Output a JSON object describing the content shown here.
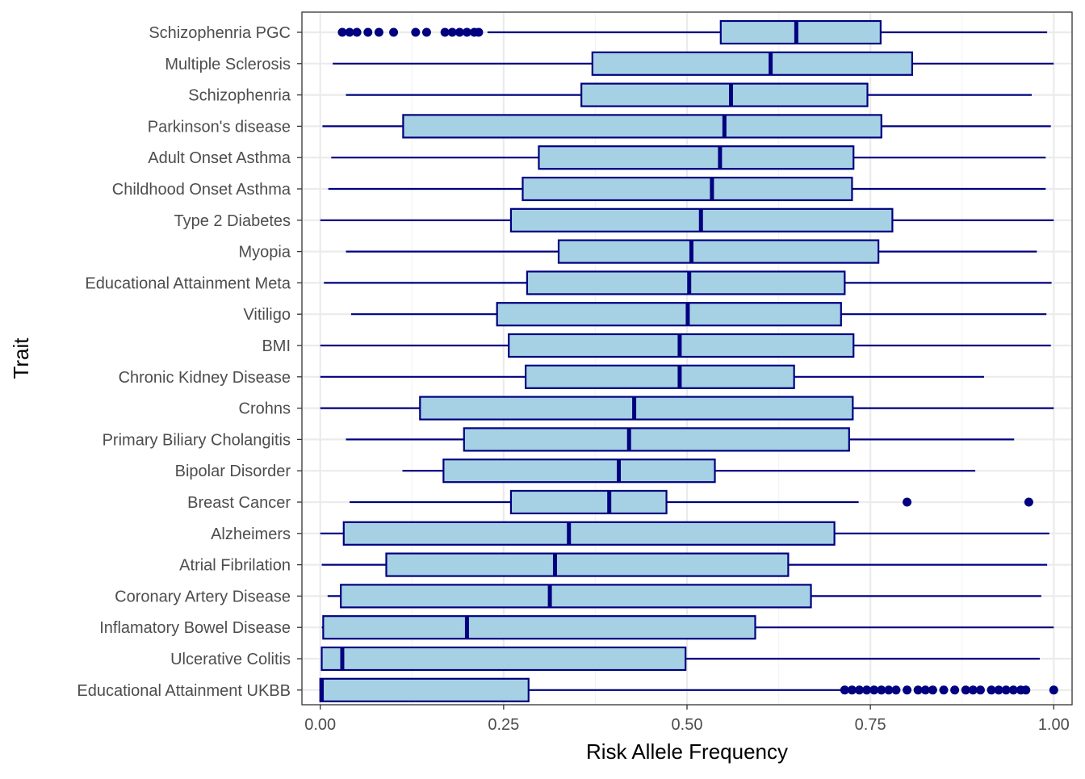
{
  "chart_data": {
    "type": "boxplot",
    "orientation": "horizontal",
    "title": "",
    "xlabel": "Risk Allele Frequency",
    "ylabel": "Trait",
    "xlim": [
      -0.025,
      1.025
    ],
    "xticks": [
      0.0,
      0.25,
      0.5,
      0.75,
      1.0
    ],
    "xtick_labels": [
      "0.00",
      "0.25",
      "0.50",
      "0.75",
      "1.00"
    ],
    "grid": true,
    "legend": "none",
    "colors": {
      "box_fill": "#a6d1e4",
      "box_stroke": "#000080",
      "outlier": "#000080",
      "grid_major": "#ebebeb",
      "grid_minor": "#f4f4f4",
      "panel_border": "#333333"
    },
    "series": [
      {
        "category": "Schizophenria PGC",
        "min": 0.228,
        "q1": 0.546,
        "median": 0.649,
        "q3": 0.764,
        "max": 0.991,
        "outliers": [
          0.03,
          0.04,
          0.05,
          0.065,
          0.08,
          0.1,
          0.13,
          0.145,
          0.17,
          0.18,
          0.19,
          0.2,
          0.21,
          0.216
        ]
      },
      {
        "category": "Multiple Sclerosis",
        "min": 0.017,
        "q1": 0.371,
        "median": 0.614,
        "q3": 0.807,
        "max": 1.0,
        "outliers": []
      },
      {
        "category": "Schizophenria",
        "min": 0.035,
        "q1": 0.356,
        "median": 0.56,
        "q3": 0.746,
        "max": 0.97,
        "outliers": []
      },
      {
        "category": "Parkinson's disease",
        "min": 0.003,
        "q1": 0.113,
        "median": 0.551,
        "q3": 0.765,
        "max": 0.996,
        "outliers": []
      },
      {
        "category": "Adult Onset Asthma",
        "min": 0.015,
        "q1": 0.298,
        "median": 0.545,
        "q3": 0.727,
        "max": 0.989,
        "outliers": []
      },
      {
        "category": "Childhood Onset Asthma",
        "min": 0.011,
        "q1": 0.276,
        "median": 0.534,
        "q3": 0.725,
        "max": 0.989,
        "outliers": []
      },
      {
        "category": "Type 2 Diabetes",
        "min": 0.0,
        "q1": 0.26,
        "median": 0.519,
        "q3": 0.78,
        "max": 1.0,
        "outliers": []
      },
      {
        "category": "Myopia",
        "min": 0.035,
        "q1": 0.325,
        "median": 0.506,
        "q3": 0.761,
        "max": 0.977,
        "outliers": []
      },
      {
        "category": "Educational Attainment Meta",
        "min": 0.005,
        "q1": 0.282,
        "median": 0.503,
        "q3": 0.715,
        "max": 0.997,
        "outliers": []
      },
      {
        "category": "Vitiligo",
        "min": 0.042,
        "q1": 0.241,
        "median": 0.501,
        "q3": 0.71,
        "max": 0.99,
        "outliers": []
      },
      {
        "category": "BMI",
        "min": 0.0,
        "q1": 0.257,
        "median": 0.49,
        "q3": 0.727,
        "max": 0.996,
        "outliers": []
      },
      {
        "category": "Chronic Kidney Disease",
        "min": 0.0,
        "q1": 0.28,
        "median": 0.49,
        "q3": 0.646,
        "max": 0.905,
        "outliers": []
      },
      {
        "category": "Crohns",
        "min": 0.0,
        "q1": 0.136,
        "median": 0.428,
        "q3": 0.726,
        "max": 1.0,
        "outliers": []
      },
      {
        "category": "Primary Biliary Cholangitis",
        "min": 0.035,
        "q1": 0.196,
        "median": 0.421,
        "q3": 0.721,
        "max": 0.946,
        "outliers": []
      },
      {
        "category": "Bipolar Disorder",
        "min": 0.112,
        "q1": 0.168,
        "median": 0.407,
        "q3": 0.538,
        "max": 0.893,
        "outliers": []
      },
      {
        "category": "Breast Cancer",
        "min": 0.04,
        "q1": 0.26,
        "median": 0.394,
        "q3": 0.472,
        "max": 0.734,
        "outliers": [
          0.8,
          0.966
        ]
      },
      {
        "category": "Alzheimers",
        "min": 0.0,
        "q1": 0.032,
        "median": 0.339,
        "q3": 0.701,
        "max": 0.994,
        "outliers": []
      },
      {
        "category": "Atrial Fibrilation",
        "min": 0.002,
        "q1": 0.09,
        "median": 0.32,
        "q3": 0.638,
        "max": 0.991,
        "outliers": []
      },
      {
        "category": "Coronary Artery Disease",
        "min": 0.01,
        "q1": 0.028,
        "median": 0.313,
        "q3": 0.669,
        "max": 0.983,
        "outliers": []
      },
      {
        "category": "Inflamatory Bowel Disease",
        "min": 0.002,
        "q1": 0.004,
        "median": 0.2,
        "q3": 0.593,
        "max": 1.0,
        "outliers": []
      },
      {
        "category": "Ulcerative Colitis",
        "min": 0.001,
        "q1": 0.002,
        "median": 0.03,
        "q3": 0.498,
        "max": 0.981,
        "outliers": []
      },
      {
        "category": "Educational Attainment UKBB",
        "min": 0.0,
        "q1": 0.0,
        "median": 0.002,
        "q3": 0.284,
        "max": 0.71,
        "outliers": [
          0.715,
          0.725,
          0.735,
          0.745,
          0.755,
          0.765,
          0.775,
          0.785,
          0.8,
          0.815,
          0.825,
          0.835,
          0.85,
          0.865,
          0.88,
          0.89,
          0.9,
          0.915,
          0.925,
          0.935,
          0.945,
          0.955,
          0.962,
          1.0
        ]
      }
    ]
  }
}
